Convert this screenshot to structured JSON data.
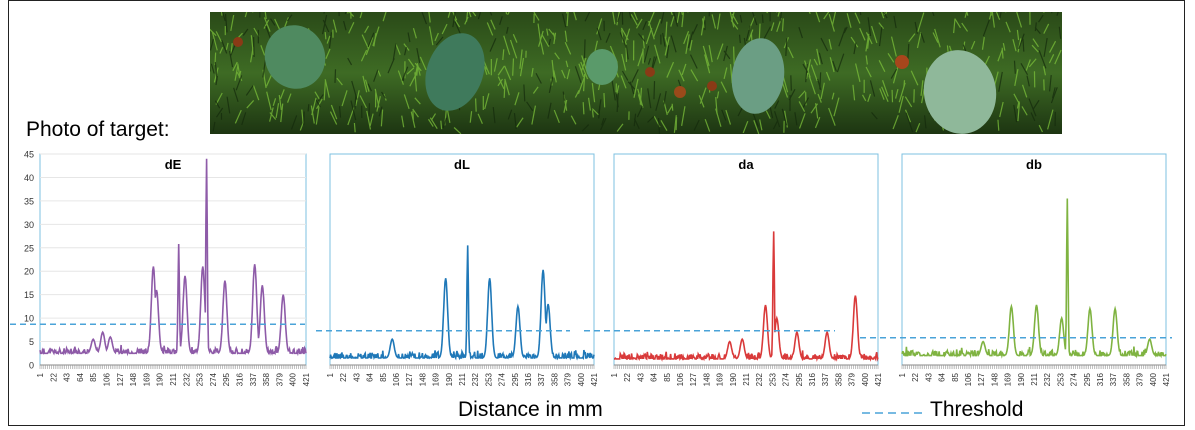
{
  "photo": {
    "label": "Photo of target:"
  },
  "footer": {
    "xlabel": "Distance in mm",
    "threshold_label": "Threshold"
  },
  "chart_data": [
    {
      "type": "line",
      "title": "dE",
      "color": "#8E5BA8",
      "ylim": [
        0,
        45
      ],
      "yticks": [
        0,
        5,
        10,
        15,
        20,
        25,
        30,
        35,
        40,
        45
      ],
      "x_ticks": [
        "1",
        "22",
        "43",
        "64",
        "85",
        "106",
        "127",
        "148",
        "169",
        "190",
        "211",
        "232",
        "253",
        "274",
        "295",
        "316",
        "337",
        "358",
        "379",
        "400",
        "421"
      ],
      "threshold": 8.7,
      "peaks": [
        [
          85,
          5.5
        ],
        [
          100,
          7
        ],
        [
          112,
          6
        ],
        [
          180,
          21
        ],
        [
          185,
          16
        ],
        [
          220,
          25.8
        ],
        [
          230,
          19
        ],
        [
          258,
          21
        ],
        [
          264,
          44
        ],
        [
          293,
          18
        ],
        [
          340,
          21.5
        ],
        [
          352,
          17
        ],
        [
          385,
          15
        ]
      ],
      "baseline": 2.5
    },
    {
      "type": "line",
      "title": "dL",
      "color": "#1F78B8",
      "ylim": [
        0,
        45
      ],
      "yticks": [],
      "x_ticks": [
        "1",
        "22",
        "43",
        "64",
        "85",
        "106",
        "127",
        "148",
        "169",
        "190",
        "211",
        "232",
        "253",
        "274",
        "295",
        "316",
        "337",
        "358",
        "379",
        "400",
        "421"
      ],
      "threshold": 7.3,
      "peaks": [
        [
          100,
          5.5
        ],
        [
          185,
          18.5
        ],
        [
          220,
          25.5
        ],
        [
          255,
          18.5
        ],
        [
          300,
          12.5
        ],
        [
          340,
          20.3
        ],
        [
          348,
          13
        ]
      ],
      "baseline": 1.5
    },
    {
      "type": "line",
      "title": "da",
      "color": "#D93A3A",
      "ylim": [
        0,
        45
      ],
      "yticks": [],
      "x_ticks": [
        "1",
        "22",
        "43",
        "64",
        "85",
        "106",
        "127",
        "148",
        "169",
        "190",
        "211",
        "232",
        "253",
        "274",
        "295",
        "316",
        "337",
        "358",
        "379",
        "400",
        "421"
      ],
      "threshold": 7.3,
      "peaks": [
        [
          185,
          5
        ],
        [
          205,
          5.5
        ],
        [
          242,
          12.8
        ],
        [
          255,
          28.5
        ],
        [
          260,
          10
        ],
        [
          292,
          7
        ],
        [
          340,
          7
        ],
        [
          385,
          14.8
        ]
      ],
      "baseline": 1.3
    },
    {
      "type": "line",
      "title": "db",
      "color": "#7FB341",
      "ylim": [
        0,
        45
      ],
      "yticks": [],
      "x_ticks": [
        "1",
        "22",
        "43",
        "64",
        "85",
        "106",
        "127",
        "148",
        "169",
        "190",
        "211",
        "232",
        "253",
        "274",
        "295",
        "316",
        "337",
        "358",
        "379",
        "400",
        "421"
      ],
      "threshold": 5.8,
      "peaks": [
        [
          130,
          5
        ],
        [
          175,
          12.5
        ],
        [
          215,
          12.8
        ],
        [
          255,
          10
        ],
        [
          264,
          35.5
        ],
        [
          300,
          12
        ],
        [
          340,
          12
        ],
        [
          395,
          5.5
        ]
      ],
      "baseline": 2
    }
  ]
}
